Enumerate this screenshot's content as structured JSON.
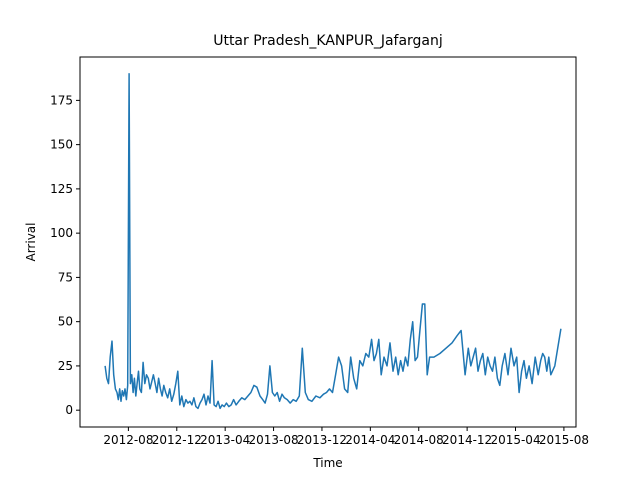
{
  "chart_data": {
    "type": "line",
    "title": "Uttar Pradesh_KANPUR_Jafarganj",
    "x_label": "Time",
    "y_label": "Arrival",
    "x": [
      "2012-06",
      "2012-06",
      "2012-06",
      "2012-06",
      "2012-06",
      "2012-06",
      "2012-06",
      "2012-07",
      "2012-07",
      "2012-07",
      "2012-07",
      "2012-07",
      "2012-07",
      "2012-07",
      "2012-07",
      "2012-07",
      "2012-08",
      "2012-08",
      "2012-08",
      "2012-08",
      "2012-08",
      "2012-08",
      "2012-08",
      "2012-08",
      "2012-08",
      "2012-09",
      "2012-09",
      "2012-09",
      "2012-09",
      "2012-09",
      "2012-09",
      "2012-09",
      "2012-10",
      "2012-10",
      "2012-10",
      "2012-10",
      "2012-10",
      "2012-10",
      "2012-10",
      "2012-11",
      "2012-11",
      "2012-11",
      "2012-11",
      "2012-11",
      "2012-11",
      "2012-12",
      "2012-12",
      "2012-12",
      "2012-12",
      "2012-12",
      "2012-12",
      "2013-01",
      "2013-01",
      "2013-01",
      "2013-01",
      "2013-01",
      "2013-01",
      "2013-02",
      "2013-02",
      "2013-02",
      "2013-02",
      "2013-02",
      "2013-02",
      "2013-03",
      "2013-03",
      "2013-03",
      "2013-03",
      "2013-03",
      "2013-03",
      "2013-04",
      "2013-04",
      "2013-04",
      "2013-04",
      "2013-04",
      "2013-05",
      "2013-05",
      "2013-05",
      "2013-05",
      "2013-06",
      "2013-06",
      "2013-06",
      "2013-06",
      "2013-07",
      "2013-07",
      "2013-07",
      "2013-07",
      "2013-07",
      "2013-08",
      "2013-08",
      "2013-08",
      "2013-08",
      "2013-08",
      "2013-09",
      "2013-09",
      "2013-09",
      "2013-09",
      "2013-10",
      "2013-10",
      "2013-10",
      "2013-10",
      "2013-11",
      "2013-11",
      "2013-11",
      "2013-12",
      "2013-12",
      "2013-12",
      "2013-12",
      "2014-01",
      "2014-01",
      "2014-01",
      "2014-01",
      "2014-02",
      "2014-02",
      "2014-02",
      "2014-02",
      "2014-03",
      "2014-03",
      "2014-03",
      "2014-03",
      "2014-04",
      "2014-04",
      "2014-04",
      "2014-04",
      "2014-04",
      "2014-05",
      "2014-05",
      "2014-05",
      "2014-05",
      "2014-06",
      "2014-06",
      "2014-06",
      "2014-06",
      "2014-06",
      "2014-07",
      "2014-07",
      "2014-07",
      "2014-07",
      "2014-07",
      "2014-08",
      "2014-08",
      "2014-08",
      "2014-08",
      "2014-08",
      "2014-09",
      "2014-09",
      "2014-10",
      "2014-10",
      "2014-11",
      "2014-11",
      "2014-11",
      "2014-12",
      "2014-12",
      "2014-12",
      "2014-12",
      "2014-12",
      "2015-01",
      "2015-01",
      "2015-01",
      "2015-01",
      "2015-01",
      "2015-02",
      "2015-02",
      "2015-02",
      "2015-02",
      "2015-02",
      "2015-03",
      "2015-03",
      "2015-03",
      "2015-03",
      "2015-04",
      "2015-04",
      "2015-04",
      "2015-04",
      "2015-04",
      "2015-05",
      "2015-05",
      "2015-05",
      "2015-05",
      "2015-06",
      "2015-06",
      "2015-06",
      "2015-06",
      "2015-06",
      "2015-06",
      "2015-07",
      "2015-07"
    ],
    "series": [
      {
        "name": "Arrival",
        "color": "#1f77b4",
        "values": [
          25,
          18,
          15,
          30,
          39,
          20,
          12,
          10,
          6,
          12,
          5,
          11,
          8,
          12,
          6,
          14,
          190,
          15,
          20,
          10,
          18,
          8,
          15,
          22,
          12,
          10,
          27,
          15,
          20,
          18,
          12,
          16,
          20,
          15,
          10,
          18,
          12,
          8,
          14,
          10,
          7,
          12,
          5,
          9,
          15,
          22,
          3,
          8,
          2,
          6,
          4,
          5,
          3,
          7,
          2,
          1,
          4,
          6,
          9,
          3,
          8,
          4,
          28,
          3,
          2,
          5,
          1,
          3,
          2,
          4,
          2,
          3,
          6,
          3,
          5,
          7,
          6,
          8,
          10,
          14,
          13,
          8,
          6,
          4,
          9,
          25,
          10,
          8,
          10,
          5,
          9,
          7,
          6,
          4,
          6,
          5,
          8,
          35,
          10,
          6,
          5,
          8,
          7,
          9,
          10,
          12,
          10,
          20,
          30,
          25,
          12,
          10,
          30,
          18,
          12,
          28,
          25,
          32,
          30,
          40,
          28,
          32,
          40,
          20,
          30,
          25,
          38,
          22,
          30,
          20,
          28,
          22,
          30,
          25,
          40,
          50,
          28,
          30,
          45,
          60,
          60,
          20,
          30,
          30,
          32,
          35,
          38,
          42,
          45,
          20,
          35,
          25,
          30,
          35,
          22,
          28,
          32,
          20,
          30,
          25,
          22,
          30,
          18,
          14,
          25,
          32,
          20,
          35,
          25,
          30,
          10,
          22,
          28,
          18,
          25,
          15,
          30,
          20,
          28,
          32,
          30,
          22,
          30,
          20,
          25,
          46
        ]
      }
    ],
    "xlim": [
      "2012-04",
      "2015-09"
    ],
    "xticks": [
      "2012-08",
      "2012-12",
      "2013-04",
      "2013-08",
      "2013-12",
      "2014-04",
      "2014-08",
      "2014-12",
      "2015-04",
      "2015-08"
    ],
    "ylim": [
      -9.5,
      199.5
    ],
    "yticks": [
      0,
      25,
      50,
      75,
      100,
      125,
      150,
      175
    ]
  }
}
